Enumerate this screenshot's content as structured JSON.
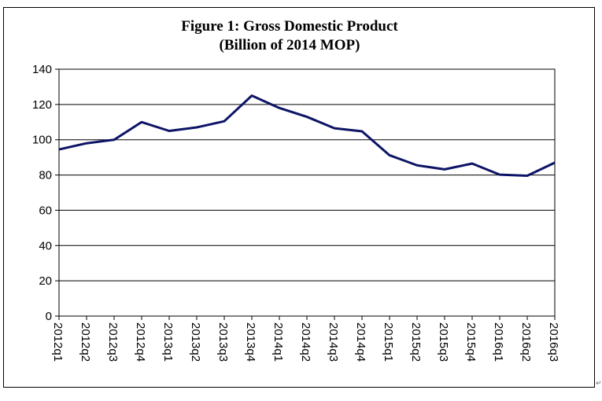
{
  "chart_data": {
    "type": "line",
    "title": "Figure 1: Gross Domestic Product",
    "subtitle": "(Billion of 2014 MOP)",
    "xlabel": "",
    "ylabel": "",
    "ylim": [
      0,
      140
    ],
    "yticks": [
      0,
      20,
      40,
      60,
      80,
      100,
      120,
      140
    ],
    "grid": true,
    "categories": [
      "2012q1",
      "2012q2",
      "2012q3",
      "2012q4",
      "2013q1",
      "2013q2",
      "2013q3",
      "2013q4",
      "2014q1",
      "2014q2",
      "2014q3",
      "2014q4",
      "2015q1",
      "2015q2",
      "2015q3",
      "2015q4",
      "2016q1",
      "2016q2",
      "2016q3"
    ],
    "series": [
      {
        "values": [
          94.5,
          98,
          100,
          110,
          105,
          107,
          110.5,
          125,
          118,
          113,
          106.5,
          104.8,
          91.2,
          85.5,
          83.2,
          86.5,
          80.2,
          79.6,
          87
        ],
        "color": "#0d1466"
      }
    ]
  }
}
